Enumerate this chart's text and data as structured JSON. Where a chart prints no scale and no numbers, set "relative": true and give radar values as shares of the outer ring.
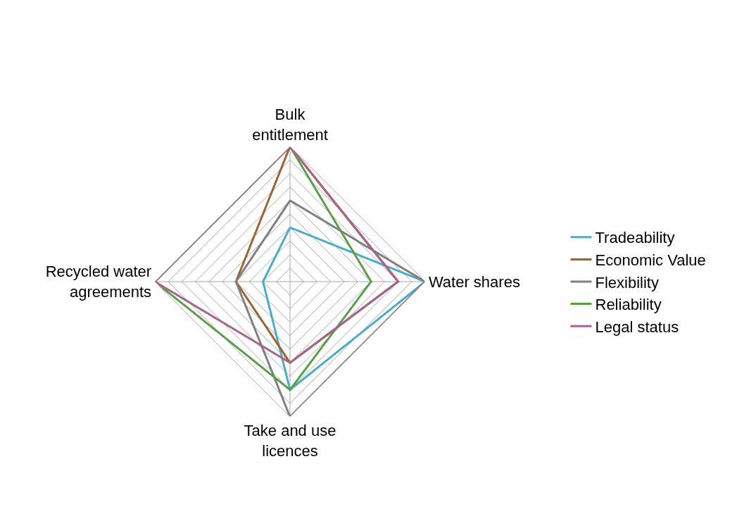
{
  "chart_data": {
    "type": "radar",
    "relative": true,
    "categories": [
      "Bulk entitlement",
      "Water shares",
      "Take and use licences",
      "Recycled water agreements"
    ],
    "series": [
      {
        "name": "Tradeability",
        "color": "#4bacc6",
        "values": [
          0.4,
          1.0,
          0.8,
          0.2
        ]
      },
      {
        "name": "Economic Value",
        "color": "#a0622d",
        "values": [
          1.0,
          0.8,
          0.6,
          0.4
        ]
      },
      {
        "name": "Flexibility",
        "color": "#7f7f7f",
        "values": [
          0.6,
          1.0,
          1.0,
          0.4
        ]
      },
      {
        "name": "Reliability",
        "color": "#5a9e45",
        "values": [
          1.0,
          0.6,
          0.8,
          1.0
        ]
      },
      {
        "name": "Legal status",
        "color": "#a7648f",
        "values": [
          1.0,
          0.8,
          0.6,
          1.0
        ]
      }
    ],
    "legend": "right",
    "grid": true,
    "marker": "none",
    "line_style": "solid"
  }
}
